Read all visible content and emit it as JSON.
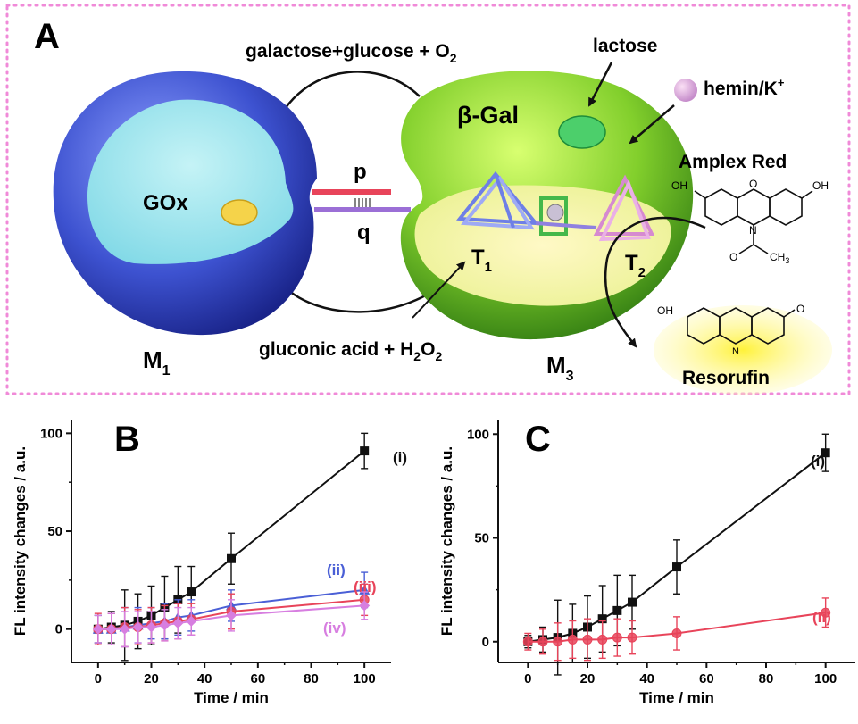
{
  "panel_a": {
    "label": "A",
    "top_reaction": "galactose+glucose + O",
    "top_reaction_sub": "2",
    "bottom_reaction": "gluconic acid + H",
    "bottom_reaction_sub1": "2",
    "bottom_reaction_mid": "O",
    "bottom_reaction_sub2": "2",
    "lactose": "lactose",
    "hemin": "hemin/K",
    "hemin_sup": "+",
    "enzyme_left": "GOx",
    "enzyme_right": "β-Gal",
    "strand_p": "p",
    "strand_q": "q",
    "t1": "T",
    "t1_sub": "1",
    "t2": "T",
    "t2_sub": "2",
    "m1": "M",
    "m1_sub": "1",
    "m3": "M",
    "m3_sub": "3",
    "amplex_red": "Amplex Red",
    "resorufin": "Resorufin",
    "oh": "OH",
    "o": "O",
    "n": "N",
    "ch3": "CH",
    "ch3_sub": "3",
    "colors": {
      "gox_sphere": "#4a5fd6",
      "gal_sphere": "#8fd43a",
      "border": "#f08ad8",
      "strand_p": "#e8445a",
      "strand_q": "#9b6fd6"
    }
  },
  "chart_data": [
    {
      "panel": "B",
      "type": "line",
      "xlabel": "Time / min",
      "ylabel": "FL intensity changes / a.u.",
      "xlim": [
        -10,
        110
      ],
      "ylim": [
        -17,
        107
      ],
      "xticks": [
        "0",
        "20",
        "40",
        "60",
        "80",
        "100"
      ],
      "yticks": [
        "0",
        "50",
        "100"
      ],
      "series": [
        {
          "name": "(i)",
          "color": "#111111",
          "marker": "square",
          "x": [
            0,
            5,
            10,
            15,
            20,
            25,
            30,
            35,
            50,
            100
          ],
          "y": [
            0,
            1,
            2,
            4,
            7,
            11,
            15,
            19,
            36,
            91
          ],
          "err": [
            7,
            8,
            18,
            14,
            15,
            16,
            17,
            13,
            13,
            9
          ]
        },
        {
          "name": "(ii)",
          "color": "#4a5fd6",
          "marker": "triangle",
          "x": [
            0,
            5,
            10,
            15,
            20,
            25,
            30,
            35,
            50,
            100
          ],
          "y": [
            0,
            0,
            1,
            2,
            3,
            4,
            6,
            7,
            12,
            20
          ],
          "err": [
            7,
            8,
            10,
            9,
            8,
            9,
            9,
            8,
            8,
            9
          ]
        },
        {
          "name": "(iii)",
          "color": "#e8445a",
          "marker": "circle",
          "x": [
            0,
            5,
            10,
            15,
            20,
            25,
            30,
            35,
            50,
            100
          ],
          "y": [
            0,
            0,
            1,
            1,
            2,
            3,
            4,
            5,
            9,
            15
          ],
          "err": [
            8,
            8,
            10,
            9,
            9,
            9,
            9,
            8,
            9,
            8
          ]
        },
        {
          "name": "(iv)",
          "color": "#d77ee0",
          "marker": "diamond",
          "x": [
            0,
            5,
            10,
            15,
            20,
            25,
            30,
            35,
            50,
            100
          ],
          "y": [
            0,
            0,
            0,
            1,
            1,
            2,
            3,
            4,
            7,
            12
          ],
          "err": [
            7,
            8,
            9,
            8,
            8,
            8,
            8,
            7,
            8,
            7
          ]
        }
      ]
    },
    {
      "panel": "C",
      "type": "line",
      "xlabel": "Time / min",
      "ylabel": "FL intensity changes / a.u.",
      "xlim": [
        -10,
        110
      ],
      "ylim": [
        -10,
        107
      ],
      "xticks": [
        "0",
        "20",
        "40",
        "60",
        "80",
        "100"
      ],
      "yticks": [
        "0",
        "50",
        "100"
      ],
      "series": [
        {
          "name": "(i)",
          "color": "#111111",
          "marker": "square",
          "x": [
            0,
            5,
            10,
            15,
            20,
            25,
            30,
            35,
            50,
            100
          ],
          "y": [
            0,
            1,
            2,
            4,
            7,
            11,
            15,
            19,
            36,
            91
          ],
          "err": [
            3,
            6,
            18,
            14,
            15,
            16,
            17,
            13,
            13,
            9
          ]
        },
        {
          "name": "(ii)",
          "color": "#e8445a",
          "marker": "circle",
          "x": [
            0,
            5,
            10,
            15,
            20,
            25,
            30,
            35,
            50,
            100
          ],
          "y": [
            0,
            0,
            0,
            1,
            1,
            1,
            2,
            2,
            4,
            14
          ],
          "err": [
            4,
            6,
            9,
            9,
            10,
            9,
            9,
            8,
            8,
            7
          ]
        }
      ]
    }
  ],
  "panel_b": {
    "label": "B"
  },
  "panel_c": {
    "label": "C"
  }
}
